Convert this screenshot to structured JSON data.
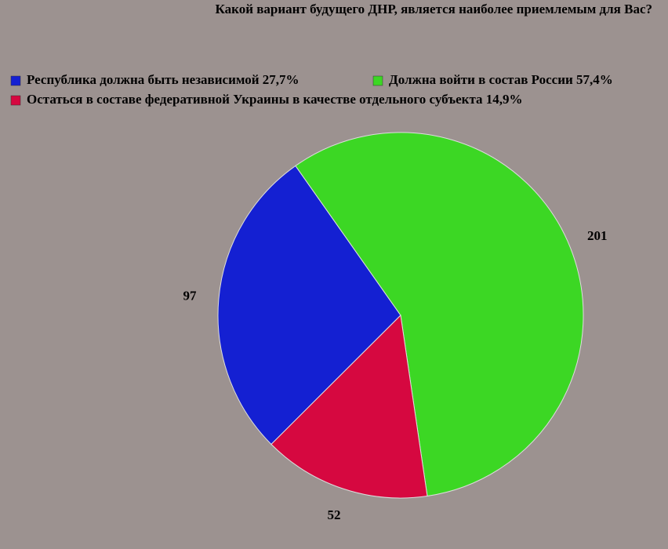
{
  "chart_data": {
    "type": "pie",
    "title": "Какой вариант будущего ДНР, является наиболее приемлемым для Вас?",
    "categories": [
      "Республика должна быть независимой 27,7%",
      "Должна войти в состав России 57,4%",
      "Остаться в составе федеративной Украины в качестве отдельного субъекта 14,9%"
    ],
    "values": [
      97,
      201,
      52
    ],
    "colors": [
      "#1420d2",
      "#3cd724",
      "#d60840"
    ],
    "legend": "top"
  }
}
